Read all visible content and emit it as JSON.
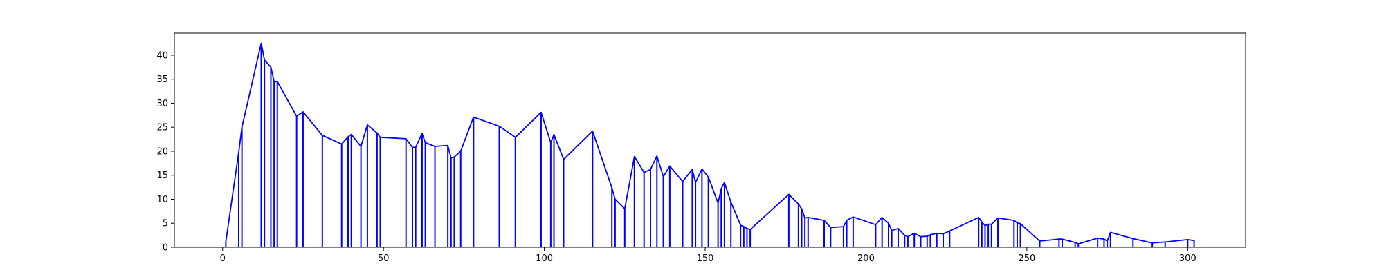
{
  "chart_data": {
    "type": "line",
    "title": "",
    "xlabel": "",
    "ylabel": "",
    "xlim": [
      -15,
      318
    ],
    "ylim": [
      0,
      44.6
    ],
    "x_ticks": [
      0,
      50,
      100,
      150,
      200,
      250,
      300
    ],
    "y_ticks": [
      0,
      5,
      10,
      15,
      20,
      25,
      30,
      35,
      40
    ],
    "grid": false,
    "line_color": "#0000ff",
    "series": [
      {
        "x": [
          1,
          5,
          6,
          12,
          13,
          15,
          16,
          17,
          23,
          25,
          31,
          37,
          39,
          40,
          43,
          45,
          48,
          49,
          57,
          59,
          60,
          62,
          63,
          66,
          70,
          71,
          72,
          74,
          78,
          86,
          91,
          99,
          102,
          103,
          106,
          115,
          121,
          122,
          125,
          128,
          131,
          133,
          135,
          137,
          139,
          143,
          146,
          147,
          149,
          151,
          154,
          155,
          156,
          158,
          161,
          162,
          163,
          164,
          176,
          179,
          180,
          181,
          182,
          187,
          189,
          193,
          194,
          196,
          203,
          205,
          207,
          208,
          210,
          212,
          213,
          215,
          217,
          219,
          220,
          222,
          224,
          226,
          235,
          236,
          237,
          238,
          239,
          241,
          246,
          247,
          248,
          254,
          260,
          261,
          265,
          266,
          272,
          274,
          275,
          276,
          283,
          289,
          293,
          300,
          302
        ],
        "y": [
          1.2,
          19.8,
          25,
          42.5,
          39,
          37.5,
          34.5,
          34.5,
          27.3,
          28.2,
          23.3,
          21.5,
          23,
          23.5,
          21,
          25.5,
          23.8,
          22.9,
          22.6,
          20.8,
          20.8,
          23.7,
          21.8,
          21,
          21.2,
          18.6,
          18.8,
          20,
          27.1,
          25.2,
          22.9,
          28.1,
          21.8,
          23.5,
          18.3,
          24.2,
          12.4,
          10,
          8,
          18.9,
          15.6,
          16.2,
          19,
          14.7,
          16.9,
          13.7,
          16.2,
          13.5,
          16.3,
          14.6,
          9.2,
          12.2,
          13.5,
          9.4,
          4.6,
          4.3,
          3.9,
          3.7,
          11,
          9,
          8,
          6.1,
          6.2,
          5.6,
          4.1,
          4.3,
          5.6,
          6.3,
          4.7,
          6.2,
          5,
          3.5,
          3.9,
          2.5,
          2.2,
          2.9,
          2.2,
          2.3,
          2.6,
          2.9,
          2.8,
          3.4,
          6.2,
          5.3,
          4.5,
          4.8,
          4.8,
          6.1,
          5.6,
          5.1,
          4.9,
          1.3,
          1.7,
          1.7,
          1,
          0.7,
          1.9,
          1.7,
          1.3,
          3.1,
          1.8,
          0.9,
          1.1,
          1.6,
          1.4
        ]
      }
    ]
  }
}
